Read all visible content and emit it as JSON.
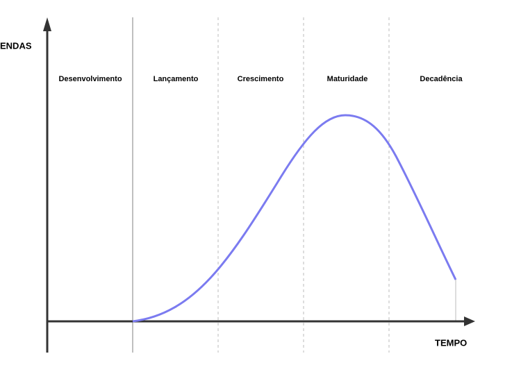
{
  "axes": {
    "y_label": "ENDAS",
    "x_label": "TEMPO"
  },
  "stages": [
    {
      "label": "Desenvolvimento"
    },
    {
      "label": "Lançamento"
    },
    {
      "label": "Crescimento"
    },
    {
      "label": "Maturidade"
    },
    {
      "label": "Decadência"
    }
  ]
}
